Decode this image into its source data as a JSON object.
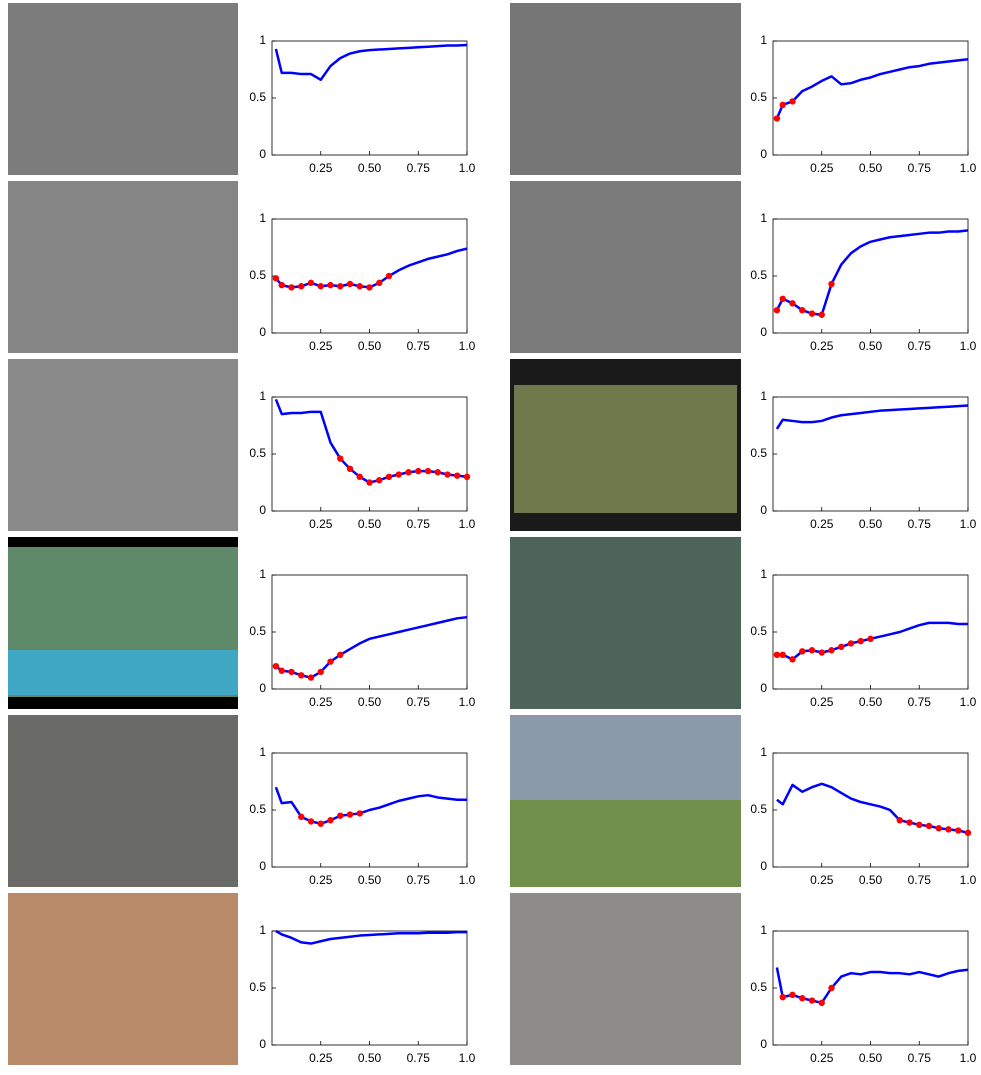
{
  "chart_data": [
    {
      "type": "line",
      "xlim": [
        0,
        1
      ],
      "ylim": [
        0,
        1
      ],
      "yticks": [
        0,
        0.5,
        1
      ],
      "xticks": [
        0.25,
        {
          "value": 0.5,
          "label": "0.50"
        },
        0.75,
        {
          "value": 1,
          "label": "1.0"
        }
      ],
      "x": [
        0.02,
        0.05,
        0.1,
        0.15,
        0.2,
        0.25,
        0.3,
        0.35,
        0.4,
        0.45,
        0.5,
        0.55,
        0.6,
        0.65,
        0.7,
        0.75,
        0.8,
        0.85,
        0.9,
        0.95,
        1.0
      ],
      "series": [
        {
          "color": "#0000ff",
          "style": "line",
          "values": [
            0.93,
            0.72,
            0.72,
            0.71,
            0.71,
            0.66,
            0.78,
            0.85,
            0.89,
            0.91,
            0.92,
            0.925,
            0.93,
            0.935,
            0.94,
            0.945,
            0.95,
            0.955,
            0.96,
            0.96,
            0.965
          ]
        }
      ]
    },
    {
      "type": "line",
      "xlim": [
        0,
        1
      ],
      "ylim": [
        0,
        1
      ],
      "yticks": [
        0,
        0.5,
        1
      ],
      "xticks": [
        0.25,
        {
          "value": 0.5,
          "label": "0.50"
        },
        0.75,
        {
          "value": 1,
          "label": "1.0"
        }
      ],
      "x": [
        0.02,
        0.05,
        0.1,
        0.15,
        0.2,
        0.25,
        0.3,
        0.35,
        0.4,
        0.45,
        0.5,
        0.55,
        0.6,
        0.65,
        0.7,
        0.75,
        0.8,
        0.85,
        0.9,
        0.95,
        1.0
      ],
      "series": [
        {
          "color": "#0000ff",
          "style": "line",
          "values": [
            0.32,
            0.44,
            0.47,
            0.56,
            0.6,
            0.65,
            0.69,
            0.62,
            0.63,
            0.66,
            0.68,
            0.71,
            0.73,
            0.75,
            0.77,
            0.78,
            0.8,
            0.81,
            0.82,
            0.83,
            0.84
          ]
        },
        {
          "color": "#ff0000",
          "style": "dots",
          "values": [
            0.32,
            0.44,
            0.47,
            null,
            null,
            null,
            null,
            null,
            null,
            null,
            null,
            null,
            null,
            null,
            null,
            null,
            null,
            null,
            null,
            null,
            null
          ]
        }
      ]
    },
    {
      "type": "line",
      "xlim": [
        0,
        1
      ],
      "ylim": [
        0,
        1
      ],
      "yticks": [
        0,
        0.5,
        1
      ],
      "xticks": [
        0.25,
        {
          "value": 0.5,
          "label": "0.50"
        },
        0.75,
        {
          "value": 1,
          "label": "1.0"
        }
      ],
      "x": [
        0.02,
        0.05,
        0.1,
        0.15,
        0.2,
        0.25,
        0.3,
        0.35,
        0.4,
        0.45,
        0.5,
        0.55,
        0.6,
        0.65,
        0.7,
        0.75,
        0.8,
        0.85,
        0.9,
        0.95,
        1.0
      ],
      "series": [
        {
          "color": "#0000ff",
          "style": "line",
          "values": [
            0.48,
            0.42,
            0.4,
            0.41,
            0.44,
            0.41,
            0.42,
            0.41,
            0.43,
            0.41,
            0.4,
            0.44,
            0.5,
            0.55,
            0.59,
            0.62,
            0.65,
            0.67,
            0.69,
            0.72,
            0.74
          ]
        },
        {
          "color": "#ff0000",
          "style": "dots",
          "values": [
            0.48,
            0.42,
            0.4,
            0.41,
            0.44,
            0.41,
            0.42,
            0.41,
            0.43,
            0.41,
            0.4,
            0.44,
            0.5,
            null,
            null,
            null,
            null,
            null,
            null,
            null,
            null
          ]
        }
      ]
    },
    {
      "type": "line",
      "xlim": [
        0,
        1
      ],
      "ylim": [
        0,
        1
      ],
      "yticks": [
        0,
        0.5,
        1
      ],
      "xticks": [
        0.25,
        {
          "value": 0.5,
          "label": "0.50"
        },
        0.75,
        {
          "value": 1,
          "label": "1.0"
        }
      ],
      "x": [
        0.02,
        0.05,
        0.1,
        0.15,
        0.2,
        0.25,
        0.3,
        0.35,
        0.4,
        0.45,
        0.5,
        0.55,
        0.6,
        0.65,
        0.7,
        0.75,
        0.8,
        0.85,
        0.9,
        0.95,
        1.0
      ],
      "series": [
        {
          "color": "#0000ff",
          "style": "line",
          "values": [
            0.2,
            0.3,
            0.26,
            0.2,
            0.17,
            0.16,
            0.43,
            0.6,
            0.7,
            0.76,
            0.8,
            0.82,
            0.84,
            0.85,
            0.86,
            0.87,
            0.88,
            0.88,
            0.89,
            0.89,
            0.9
          ]
        },
        {
          "color": "#ff0000",
          "style": "dots",
          "values": [
            0.2,
            0.3,
            0.26,
            0.2,
            0.17,
            0.16,
            0.43,
            null,
            null,
            null,
            null,
            null,
            null,
            null,
            null,
            null,
            null,
            null,
            null,
            null,
            null
          ]
        }
      ]
    },
    {
      "type": "line",
      "xlim": [
        0,
        1
      ],
      "ylim": [
        0,
        1
      ],
      "yticks": [
        0,
        0.5,
        1
      ],
      "xticks": [
        0.25,
        {
          "value": 0.5,
          "label": "0.50"
        },
        0.75,
        {
          "value": 1,
          "label": "1.0"
        }
      ],
      "x": [
        0.02,
        0.05,
        0.1,
        0.15,
        0.2,
        0.25,
        0.3,
        0.35,
        0.4,
        0.45,
        0.5,
        0.55,
        0.6,
        0.65,
        0.7,
        0.75,
        0.8,
        0.85,
        0.9,
        0.95,
        1.0
      ],
      "series": [
        {
          "color": "#0000ff",
          "style": "line",
          "values": [
            0.98,
            0.85,
            0.86,
            0.86,
            0.87,
            0.87,
            0.6,
            0.46,
            0.37,
            0.3,
            0.25,
            0.27,
            0.3,
            0.32,
            0.34,
            0.35,
            0.35,
            0.34,
            0.32,
            0.31,
            0.3
          ]
        },
        {
          "color": "#ff0000",
          "style": "dots",
          "values": [
            null,
            null,
            null,
            null,
            null,
            null,
            null,
            0.46,
            0.37,
            0.3,
            0.25,
            0.27,
            0.3,
            0.32,
            0.34,
            0.35,
            0.35,
            0.34,
            0.32,
            0.31,
            0.3
          ]
        }
      ]
    },
    {
      "type": "line",
      "xlim": [
        0,
        1
      ],
      "ylim": [
        0,
        1
      ],
      "yticks": [
        0,
        0.5,
        1
      ],
      "xticks": [
        0.25,
        {
          "value": 0.5,
          "label": "0.50"
        },
        0.75,
        {
          "value": 1,
          "label": "1.0"
        }
      ],
      "x": [
        0.02,
        0.05,
        0.1,
        0.15,
        0.2,
        0.25,
        0.3,
        0.35,
        0.4,
        0.45,
        0.5,
        0.55,
        0.6,
        0.65,
        0.7,
        0.75,
        0.8,
        0.85,
        0.9,
        0.95,
        1.0
      ],
      "series": [
        {
          "color": "#0000ff",
          "style": "line",
          "values": [
            0.72,
            0.8,
            0.79,
            0.78,
            0.78,
            0.79,
            0.82,
            0.84,
            0.85,
            0.86,
            0.87,
            0.88,
            0.885,
            0.89,
            0.895,
            0.9,
            0.905,
            0.91,
            0.915,
            0.92,
            0.925
          ]
        }
      ]
    },
    {
      "type": "line",
      "xlim": [
        0,
        1
      ],
      "ylim": [
        0,
        1
      ],
      "yticks": [
        0,
        0.5,
        1
      ],
      "xticks": [
        0.25,
        {
          "value": 0.5,
          "label": "0.50"
        },
        0.75,
        {
          "value": 1,
          "label": "1.0"
        }
      ],
      "x": [
        0.02,
        0.05,
        0.1,
        0.15,
        0.2,
        0.25,
        0.3,
        0.35,
        0.4,
        0.45,
        0.5,
        0.55,
        0.6,
        0.65,
        0.7,
        0.75,
        0.8,
        0.85,
        0.9,
        0.95,
        1.0
      ],
      "series": [
        {
          "color": "#0000ff",
          "style": "line",
          "values": [
            0.2,
            0.16,
            0.15,
            0.12,
            0.1,
            0.15,
            0.24,
            0.3,
            0.35,
            0.4,
            0.44,
            0.46,
            0.48,
            0.5,
            0.52,
            0.54,
            0.56,
            0.58,
            0.6,
            0.62,
            0.63
          ]
        },
        {
          "color": "#ff0000",
          "style": "dots",
          "values": [
            0.2,
            0.16,
            0.15,
            0.12,
            0.1,
            0.15,
            0.24,
            0.3,
            null,
            null,
            null,
            null,
            null,
            null,
            null,
            null,
            null,
            null,
            null,
            null,
            null
          ]
        }
      ]
    },
    {
      "type": "line",
      "xlim": [
        0,
        1
      ],
      "ylim": [
        0,
        1
      ],
      "yticks": [
        0,
        0.5,
        1
      ],
      "xticks": [
        0.25,
        {
          "value": 0.5,
          "label": "0.50"
        },
        0.75,
        {
          "value": 1,
          "label": "1.0"
        }
      ],
      "x": [
        0.02,
        0.05,
        0.1,
        0.15,
        0.2,
        0.25,
        0.3,
        0.35,
        0.4,
        0.45,
        0.5,
        0.55,
        0.6,
        0.65,
        0.7,
        0.75,
        0.8,
        0.85,
        0.9,
        0.95,
        1.0
      ],
      "series": [
        {
          "color": "#0000ff",
          "style": "line",
          "values": [
            0.3,
            0.3,
            0.26,
            0.33,
            0.34,
            0.32,
            0.34,
            0.37,
            0.4,
            0.42,
            0.44,
            0.46,
            0.48,
            0.5,
            0.53,
            0.56,
            0.58,
            0.58,
            0.58,
            0.57,
            0.57
          ]
        },
        {
          "color": "#ff0000",
          "style": "dots",
          "values": [
            0.3,
            0.3,
            0.26,
            0.33,
            0.34,
            0.32,
            0.34,
            0.37,
            0.4,
            0.42,
            0.44,
            null,
            null,
            null,
            null,
            null,
            null,
            null,
            null,
            null,
            null
          ]
        }
      ]
    },
    {
      "type": "line",
      "xlim": [
        0,
        1
      ],
      "ylim": [
        0,
        1
      ],
      "yticks": [
        0,
        0.5,
        1
      ],
      "xticks": [
        0.25,
        {
          "value": 0.5,
          "label": "0.50"
        },
        0.75,
        {
          "value": 1,
          "label": "1.0"
        }
      ],
      "x": [
        0.02,
        0.05,
        0.1,
        0.15,
        0.2,
        0.25,
        0.3,
        0.35,
        0.4,
        0.45,
        0.5,
        0.55,
        0.6,
        0.65,
        0.7,
        0.75,
        0.8,
        0.85,
        0.9,
        0.95,
        1.0
      ],
      "series": [
        {
          "color": "#0000ff",
          "style": "line",
          "values": [
            0.7,
            0.56,
            0.57,
            0.44,
            0.4,
            0.38,
            0.41,
            0.45,
            0.46,
            0.47,
            0.5,
            0.52,
            0.55,
            0.58,
            0.6,
            0.62,
            0.63,
            0.61,
            0.6,
            0.59,
            0.59
          ]
        },
        {
          "color": "#ff0000",
          "style": "dots",
          "values": [
            null,
            null,
            null,
            0.44,
            0.4,
            0.38,
            0.41,
            0.45,
            0.46,
            0.47,
            null,
            null,
            null,
            null,
            null,
            null,
            null,
            null,
            null,
            null,
            null
          ]
        }
      ]
    },
    {
      "type": "line",
      "xlim": [
        0,
        1
      ],
      "ylim": [
        0,
        1
      ],
      "yticks": [
        0,
        0.5,
        1
      ],
      "xticks": [
        0.25,
        {
          "value": 0.5,
          "label": "0.50"
        },
        0.75,
        {
          "value": 1,
          "label": "1.0"
        }
      ],
      "x": [
        0.02,
        0.05,
        0.1,
        0.15,
        0.2,
        0.25,
        0.3,
        0.35,
        0.4,
        0.45,
        0.5,
        0.55,
        0.6,
        0.65,
        0.7,
        0.75,
        0.8,
        0.85,
        0.9,
        0.95,
        1.0
      ],
      "series": [
        {
          "color": "#0000ff",
          "style": "line",
          "values": [
            0.59,
            0.55,
            0.72,
            0.66,
            0.7,
            0.73,
            0.7,
            0.65,
            0.6,
            0.57,
            0.55,
            0.53,
            0.5,
            0.41,
            0.39,
            0.37,
            0.36,
            0.34,
            0.33,
            0.32,
            0.3
          ]
        },
        {
          "color": "#ff0000",
          "style": "dots",
          "values": [
            null,
            null,
            null,
            null,
            null,
            null,
            null,
            null,
            null,
            null,
            null,
            null,
            null,
            0.41,
            0.39,
            0.37,
            0.36,
            0.34,
            0.33,
            0.32,
            0.3
          ]
        }
      ]
    },
    {
      "type": "line",
      "xlim": [
        0,
        1
      ],
      "ylim": [
        0,
        1
      ],
      "yticks": [
        0,
        0.5,
        1
      ],
      "xticks": [
        0.25,
        {
          "value": 0.5,
          "label": "0.50"
        },
        0.75,
        {
          "value": 1,
          "label": "1.0"
        }
      ],
      "x": [
        0.02,
        0.05,
        0.1,
        0.15,
        0.2,
        0.25,
        0.3,
        0.35,
        0.4,
        0.45,
        0.5,
        0.55,
        0.6,
        0.65,
        0.7,
        0.75,
        0.8,
        0.85,
        0.9,
        0.95,
        1.0
      ],
      "series": [
        {
          "color": "#0000ff",
          "style": "line",
          "values": [
            1,
            0.97,
            0.94,
            0.9,
            0.89,
            0.91,
            0.93,
            0.94,
            0.95,
            0.96,
            0.965,
            0.97,
            0.975,
            0.98,
            0.98,
            0.98,
            0.985,
            0.985,
            0.985,
            0.99,
            0.99
          ]
        }
      ]
    },
    {
      "type": "line",
      "xlim": [
        0,
        1
      ],
      "ylim": [
        0,
        1
      ],
      "yticks": [
        0,
        0.5,
        1
      ],
      "xticks": [
        0.25,
        {
          "value": 0.5,
          "label": "0.50"
        },
        0.75,
        {
          "value": 1,
          "label": "1.0"
        }
      ],
      "x": [
        0.02,
        0.05,
        0.1,
        0.15,
        0.2,
        0.25,
        0.3,
        0.35,
        0.4,
        0.45,
        0.5,
        0.55,
        0.6,
        0.65,
        0.7,
        0.75,
        0.8,
        0.85,
        0.9,
        0.95,
        1.0
      ],
      "series": [
        {
          "color": "#0000ff",
          "style": "line",
          "values": [
            0.68,
            0.42,
            0.44,
            0.41,
            0.39,
            0.37,
            0.5,
            0.6,
            0.63,
            0.62,
            0.64,
            0.64,
            0.63,
            0.63,
            0.62,
            0.64,
            0.62,
            0.6,
            0.63,
            0.65,
            0.66
          ]
        },
        {
          "color": "#ff0000",
          "style": "dots",
          "values": [
            null,
            0.42,
            0.44,
            0.41,
            0.39,
            0.37,
            0.5,
            null,
            null,
            null,
            null,
            null,
            null,
            null,
            null,
            null,
            null,
            null,
            null,
            null,
            null
          ]
        }
      ]
    }
  ]
}
